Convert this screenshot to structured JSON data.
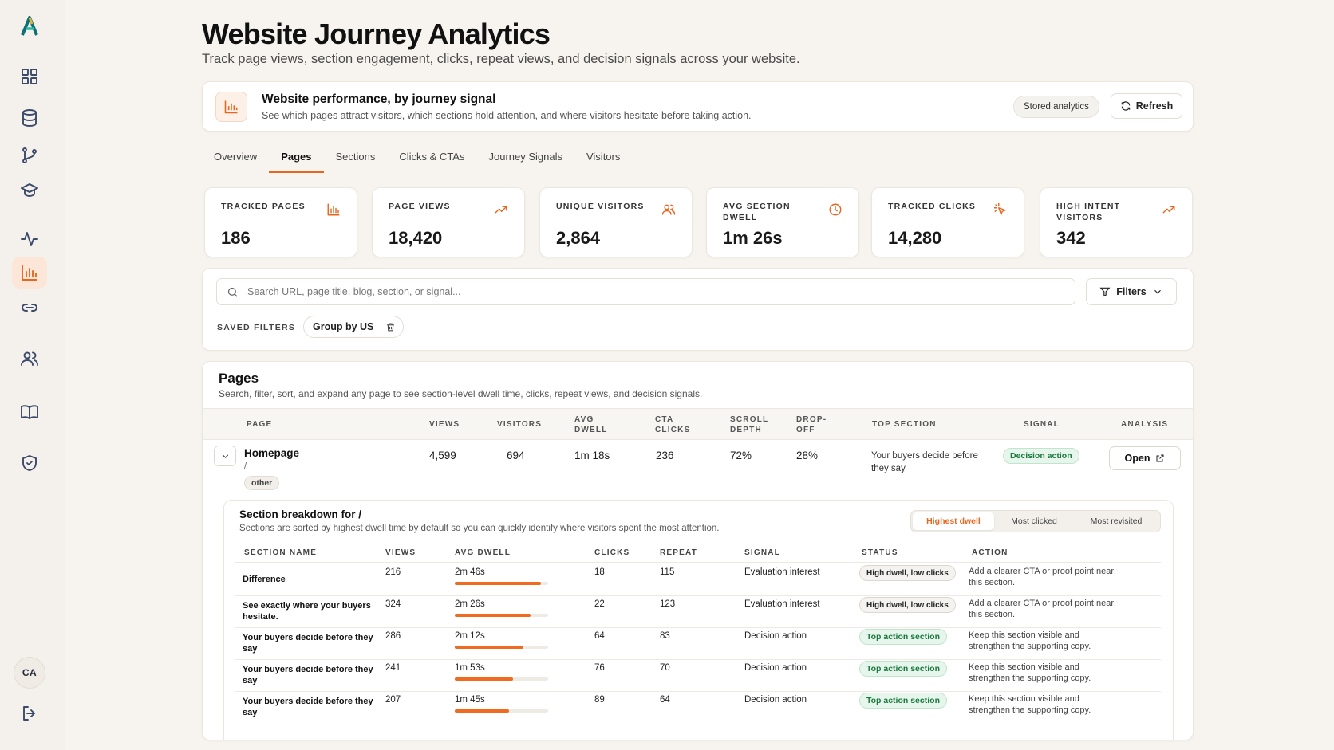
{
  "header": {
    "title": "Website Journey Analytics",
    "subtitle": "Track page views, section engagement, clicks, repeat views, and decision signals across your website."
  },
  "sidebar": {
    "avatar": "CA",
    "items": [
      {
        "name": "dashboard"
      },
      {
        "name": "database"
      },
      {
        "name": "branch"
      },
      {
        "name": "graduation"
      },
      {
        "name": "activity"
      },
      {
        "name": "analytics",
        "active": true
      },
      {
        "name": "link"
      },
      {
        "name": "users"
      },
      {
        "name": "book"
      },
      {
        "name": "shield"
      }
    ]
  },
  "performance": {
    "title": "Website performance, by journey signal",
    "description": "See which pages attract visitors, which sections hold attention, and where visitors hesitate before taking action.",
    "stored_label": "Stored analytics",
    "refresh_label": "Refresh"
  },
  "tabs": [
    "Overview",
    "Pages",
    "Sections",
    "Clicks & CTAs",
    "Journey Signals",
    "Visitors"
  ],
  "active_tab": "Pages",
  "stats": [
    {
      "label": "Tracked pages",
      "value": "186",
      "icon": "bar-chart-icon"
    },
    {
      "label": "Page views",
      "value": "18,420",
      "icon": "trending-up-icon"
    },
    {
      "label": "Unique visitors",
      "value": "2,864",
      "icon": "users-icon"
    },
    {
      "label": "Avg section dwell",
      "value": "1m 26s",
      "icon": "clock-icon"
    },
    {
      "label": "Tracked clicks",
      "value": "14,280",
      "icon": "pointer-click-icon"
    },
    {
      "label": "High intent visitors",
      "value": "342",
      "icon": "trending-up-icon"
    }
  ],
  "search": {
    "placeholder": "Search URL, page title, blog, section, or signal...",
    "value": "",
    "filters_label": "Filters",
    "saved_filters_label": "SAVED FILTERS",
    "saved_chip": "Group by US"
  },
  "pages": {
    "title": "Pages",
    "description": "Search, filter, sort, and expand any page to see section-level dwell time, clicks, repeat views, and decision signals.",
    "columns": [
      "Page",
      "Views",
      "Visitors",
      "Avg dwell",
      "CTA clicks",
      "Scroll depth",
      "Drop-off",
      "Top section",
      "Signal",
      "Analysis"
    ],
    "row": {
      "name": "Homepage",
      "path": "/",
      "tag": "other",
      "views": "4,599",
      "visitors": "694",
      "avg_dwell": "1m 18s",
      "cta_clicks": "236",
      "scroll_depth": "72%",
      "drop_off": "28%",
      "top_section": "Your buyers decide before they say",
      "signal": "Decision action",
      "analysis_label": "Open"
    }
  },
  "breakdown": {
    "title": "Section breakdown for /",
    "description": "Sections are sorted by highest dwell time by default so you can quickly identify where visitors spent the most attention.",
    "sort_options": [
      "Highest dwell",
      "Most clicked",
      "Most revisited"
    ],
    "active_sort": "Highest dwell",
    "columns": [
      "Section name",
      "Views",
      "Avg dwell",
      "Clicks",
      "Repeat",
      "Signal",
      "Status",
      "Action"
    ],
    "rows": [
      {
        "name": "Difference",
        "views": "216",
        "avg_dwell": "2m 46s",
        "dwell_seconds": 166,
        "clicks": "18",
        "repeat": "115",
        "signal": "Evaluation interest",
        "status": "High dwell, low clicks",
        "status_type": "neutral",
        "action": "Add a clearer CTA or proof point near this section."
      },
      {
        "name": "See exactly where your buyers hesitate.",
        "views": "324",
        "avg_dwell": "2m 26s",
        "dwell_seconds": 146,
        "clicks": "22",
        "repeat": "123",
        "signal": "Evaluation interest",
        "status": "High dwell, low clicks",
        "status_type": "neutral",
        "action": "Add a clearer CTA or proof point near this section."
      },
      {
        "name": "Your buyers decide before they say",
        "views": "286",
        "avg_dwell": "2m 12s",
        "dwell_seconds": 132,
        "clicks": "64",
        "repeat": "83",
        "signal": "Decision action",
        "status": "Top action section",
        "status_type": "positive",
        "action": "Keep this section visible and strengthen the supporting copy."
      },
      {
        "name": "Your buyers decide before they say",
        "views": "241",
        "avg_dwell": "1m 53s",
        "dwell_seconds": 113,
        "clicks": "76",
        "repeat": "70",
        "signal": "Decision action",
        "status": "Top action section",
        "status_type": "positive",
        "action": "Keep this section visible and strengthen the supporting copy."
      },
      {
        "name": "Your buyers decide before they say",
        "views": "207",
        "avg_dwell": "1m 45s",
        "dwell_seconds": 105,
        "clicks": "89",
        "repeat": "64",
        "signal": "Decision action",
        "status": "Top action section",
        "status_type": "positive",
        "action": "Keep this section visible and strengthen the supporting copy."
      }
    ]
  },
  "colors": {
    "accent": "#e8671f",
    "success": "#1d7a3f",
    "background": "#f7f4ef"
  }
}
